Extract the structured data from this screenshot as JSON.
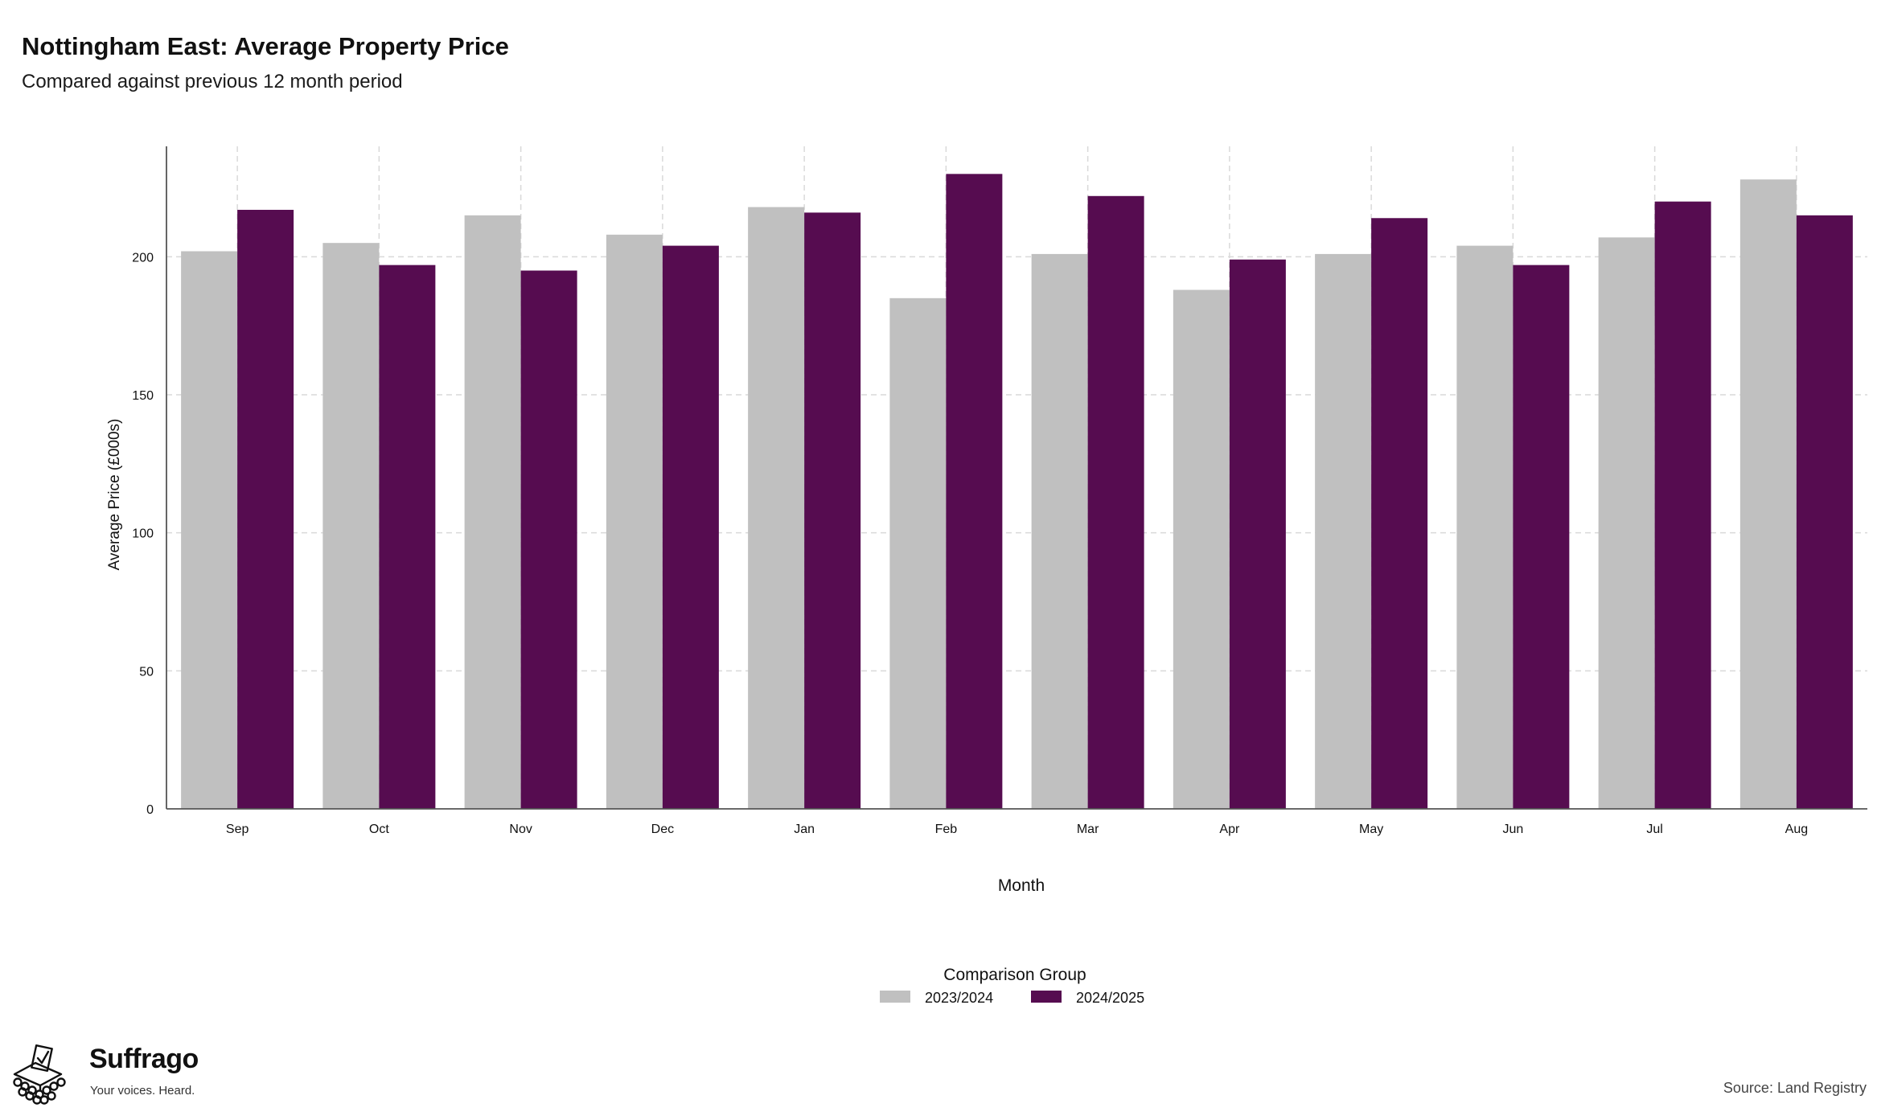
{
  "header": {
    "title": "Nottingham East: Average Property Price",
    "subtitle": "Compared against previous 12 month period"
  },
  "footer": {
    "brand_name": "Suffrago",
    "brand_tagline": "Your voices. Heard.",
    "source": "Source: Land Registry"
  },
  "colors": {
    "series_2023": "#c0c0c0",
    "series_2024": "#560c50",
    "grid": "#d9d9d9",
    "axis": "#555555"
  },
  "chart_data": {
    "type": "bar",
    "xlabel": "Month",
    "ylabel": "Average Price (£000s)",
    "ylim": [
      0,
      240
    ],
    "yticks": [
      0,
      50,
      100,
      150,
      200
    ],
    "grid": true,
    "legend_title": "Comparison Group",
    "legend_position": "bottom",
    "categories": [
      "Sep",
      "Oct",
      "Nov",
      "Dec",
      "Jan",
      "Feb",
      "Mar",
      "Apr",
      "May",
      "Jun",
      "Jul",
      "Aug"
    ],
    "series": [
      {
        "name": "2023/2024",
        "color": "#c0c0c0",
        "values": [
          202,
          205,
          215,
          208,
          218,
          185,
          201,
          188,
          201,
          204,
          207,
          228
        ]
      },
      {
        "name": "2024/2025",
        "color": "#560c50",
        "values": [
          217,
          197,
          195,
          204,
          216,
          230,
          222,
          199,
          214,
          197,
          220,
          215
        ]
      }
    ]
  }
}
